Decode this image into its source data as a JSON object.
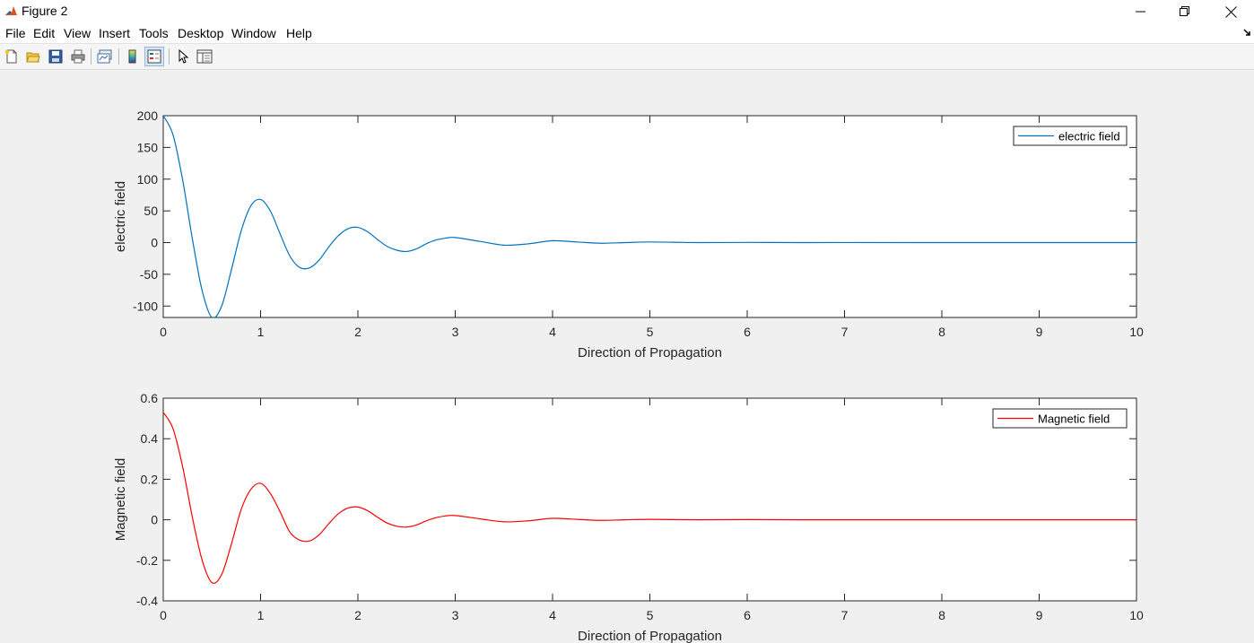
{
  "window": {
    "title": "Figure 2",
    "icons": [
      "matlab-icon",
      "minimize-icon",
      "restore-icon",
      "close-icon"
    ]
  },
  "menu": [
    "File",
    "Edit",
    "View",
    "Insert",
    "Tools",
    "Desktop",
    "Window",
    "Help"
  ],
  "toolbar": {
    "buttons": [
      "new-figure-icon",
      "open-file-icon",
      "save-icon",
      "print-icon",
      "link-plot-icon",
      "colorbar-icon",
      "legend-icon",
      "pointer-icon",
      "property-inspector-icon"
    ],
    "active": "legend-icon"
  },
  "chart_data": [
    {
      "type": "line",
      "title": "",
      "xlabel": "Direction of Propagation",
      "ylabel": "electric field",
      "xlim": [
        0,
        10
      ],
      "ylim": [
        -118,
        200
      ],
      "xticks": [
        0,
        1,
        2,
        3,
        4,
        5,
        6,
        7,
        8,
        9,
        10
      ],
      "yticks": [
        -100,
        -50,
        0,
        50,
        100,
        150,
        200
      ],
      "ytick_labels": [
        "-100",
        "-50",
        "0",
        "50",
        "100",
        "150",
        "200"
      ],
      "grid": false,
      "legend_position": "top-right",
      "series": [
        {
          "name": "electric field",
          "color": "#0072bd",
          "x": [
            0,
            0.1,
            0.2,
            0.3,
            0.4,
            0.5,
            0.6,
            0.7,
            0.8,
            0.9,
            1.0,
            1.1,
            1.2,
            1.3,
            1.4,
            1.5,
            1.6,
            1.7,
            1.8,
            1.9,
            2.0,
            2.1,
            2.2,
            2.3,
            2.4,
            2.5,
            2.6,
            2.7,
            2.8,
            2.9,
            3.0,
            3.25,
            3.5,
            3.75,
            4.0,
            4.25,
            4.5,
            4.75,
            5.0,
            5.5,
            6.0,
            6.5,
            7.0,
            8.0,
            9.0,
            10.0
          ],
          "y": [
            200,
            170,
            98,
            5,
            -76,
            -118,
            -100,
            -43,
            18,
            58,
            68,
            50,
            14,
            -21,
            -39,
            -40,
            -28,
            -7,
            11,
            22,
            24,
            17,
            5,
            -6,
            -12,
            -14,
            -10,
            -2,
            4,
            7,
            8,
            2,
            -4,
            -2,
            3,
            1,
            -1,
            0,
            1,
            0,
            0.3,
            0,
            0.1,
            0,
            0,
            0
          ]
        }
      ]
    },
    {
      "type": "line",
      "title": "",
      "xlabel": "Direction of Propagation",
      "ylabel": "Magnetic field",
      "xlim": [
        0,
        10
      ],
      "ylim": [
        -0.4,
        0.6
      ],
      "xticks": [
        0,
        1,
        2,
        3,
        4,
        5,
        6,
        7,
        8,
        9,
        10
      ],
      "yticks": [
        -0.4,
        -0.2,
        0,
        0.2,
        0.4,
        0.6
      ],
      "ytick_labels": [
        "-0.4",
        "-0.2",
        "0",
        "0.2",
        "0.4",
        "0.6"
      ],
      "grid": false,
      "legend_position": "top-right",
      "series": [
        {
          "name": "Magnetic field",
          "color": "#ff0000",
          "x": [
            0,
            0.1,
            0.2,
            0.3,
            0.4,
            0.5,
            0.6,
            0.7,
            0.8,
            0.9,
            1.0,
            1.1,
            1.2,
            1.3,
            1.4,
            1.5,
            1.6,
            1.7,
            1.8,
            1.9,
            2.0,
            2.1,
            2.2,
            2.3,
            2.4,
            2.5,
            2.6,
            2.7,
            2.8,
            2.9,
            3.0,
            3.25,
            3.5,
            3.75,
            4.0,
            4.25,
            4.5,
            4.75,
            5.0,
            5.5,
            6.0,
            6.5,
            7.0,
            8.0,
            9.0,
            10.0
          ],
          "y": [
            0.53,
            0.45,
            0.26,
            0.01,
            -0.2,
            -0.31,
            -0.27,
            -0.12,
            0.05,
            0.15,
            0.18,
            0.13,
            0.04,
            -0.06,
            -0.1,
            -0.105,
            -0.075,
            -0.02,
            0.03,
            0.058,
            0.063,
            0.045,
            0.013,
            -0.016,
            -0.032,
            -0.036,
            -0.026,
            -0.006,
            0.01,
            0.019,
            0.021,
            0.005,
            -0.01,
            -0.005,
            0.007,
            0.002,
            -0.003,
            0,
            0.002,
            0,
            0.001,
            0,
            0,
            0,
            0,
            0
          ]
        }
      ]
    }
  ]
}
